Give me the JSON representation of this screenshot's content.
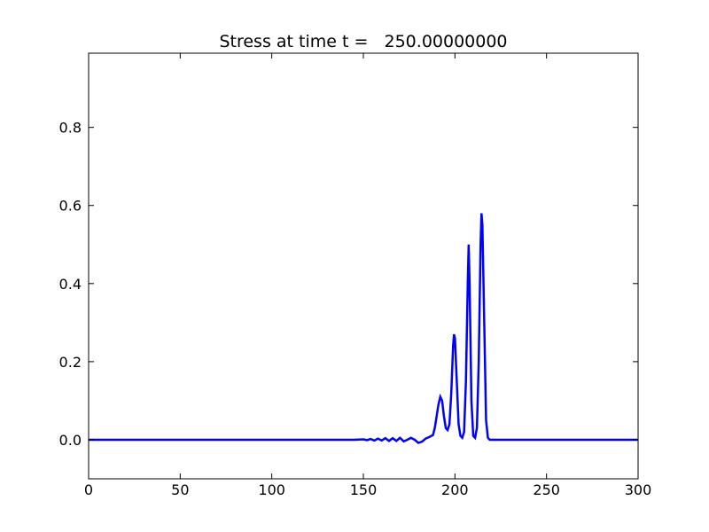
{
  "chart_data": {
    "type": "line",
    "title": "Stress at time t =   250.00000000",
    "x": [
      0,
      140,
      145,
      150,
      152,
      154,
      156,
      158,
      160,
      162,
      164,
      166,
      168,
      170,
      172,
      174,
      176,
      178,
      180,
      182,
      184,
      186,
      188,
      189,
      190,
      191,
      192,
      193,
      194,
      195,
      196,
      197,
      198,
      199,
      199.5,
      200,
      201,
      202,
      203,
      204,
      205,
      206,
      207,
      207.5,
      208,
      209,
      210,
      211,
      212,
      213,
      214,
      214.5,
      215,
      216,
      217,
      218,
      219,
      220,
      230,
      300
    ],
    "series": [
      {
        "color": "#0000ff",
        "values": [
          0,
          0,
          0,
          0.001,
          -0.001,
          0.002,
          -0.002,
          0.003,
          -0.002,
          0.004,
          -0.003,
          0.004,
          -0.003,
          0.005,
          -0.004,
          0,
          0.005,
          0,
          -0.008,
          -0.005,
          0.003,
          0.007,
          0.012,
          0.03,
          0.06,
          0.09,
          0.11,
          0.1,
          0.06,
          0.03,
          0.025,
          0.04,
          0.12,
          0.24,
          0.27,
          0.26,
          0.15,
          0.04,
          0.01,
          0.005,
          0.02,
          0.15,
          0.4,
          0.5,
          0.4,
          0.1,
          0.01,
          0.005,
          0.03,
          0.2,
          0.5,
          0.58,
          0.55,
          0.3,
          0.05,
          0.005,
          0,
          0,
          0,
          0
        ]
      }
    ],
    "xlim": [
      0,
      300
    ],
    "xticks": [
      0,
      50,
      100,
      150,
      200,
      250,
      300
    ],
    "ylim": [
      -0.1,
      0.99
    ],
    "yticks": [
      {
        "value": 0,
        "label": "0.0"
      },
      0.2,
      0.4,
      0.6,
      0.8
    ]
  }
}
